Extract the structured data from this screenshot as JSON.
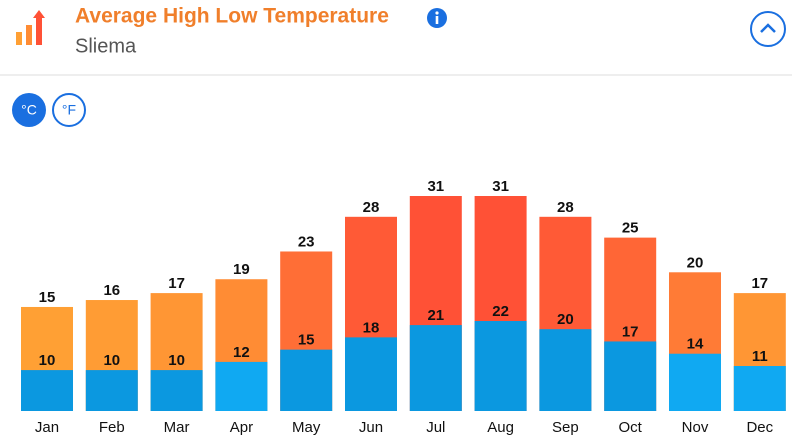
{
  "header": {
    "title": "Average High Low Temperature",
    "subtitle": "Sliema"
  },
  "unit_toggle": [
    "°C",
    "°F"
  ],
  "chart_data": {
    "type": "bar",
    "categories": [
      "Jan",
      "Feb",
      "Mar",
      "Apr",
      "May",
      "Jun",
      "Jul",
      "Aug",
      "Sep",
      "Oct",
      "Nov",
      "Dec"
    ],
    "series": [
      {
        "values": [
          15,
          16,
          17,
          19,
          23,
          28,
          31,
          31,
          28,
          25,
          20,
          17
        ],
        "colors": [
          "#ffa034",
          "#ff9c34",
          "#ff9634",
          "#ff8c34",
          "#ff6e36",
          "#ff5a36",
          "#ff5136",
          "#ff5136",
          "#ff5a36",
          "#ff6636",
          "#ff7b36",
          "#ff9634"
        ]
      },
      {
        "values": [
          10,
          10,
          10,
          12,
          15,
          18,
          21,
          22,
          20,
          17,
          14,
          11
        ],
        "colors": [
          "#0b98e0",
          "#0b98e0",
          "#0b98e0",
          "#10a9f2",
          "#0b98e0",
          "#0b98e0",
          "#0b98e0",
          "#0b98e0",
          "#0b98e0",
          "#0b98e0",
          "#10a9f2",
          "#10a9f2"
        ]
      }
    ]
  }
}
